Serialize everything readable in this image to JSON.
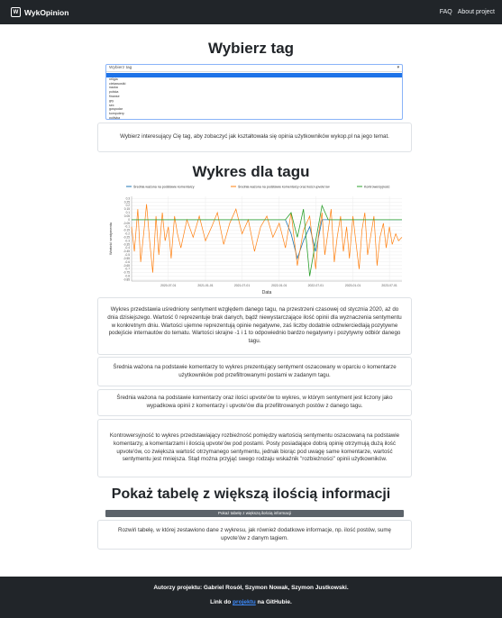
{
  "navbar": {
    "brand": "WykOpinion",
    "links": [
      "FAQ",
      "About project"
    ]
  },
  "tag_section": {
    "title": "Wybierz tag",
    "select_placeholder": "Wybierz tag",
    "options": [
      "",
      "religia",
      "ciekawostki",
      "nauka",
      "polska",
      "finanse",
      "gry",
      "sex",
      "gospodar",
      "komputery",
      "polityka"
    ],
    "selected_index": 0,
    "description": "Wybierz interesujący Cię tag, aby zobaczyć jak kształtowała się opinia użytkowników wykop.pl na jego temat."
  },
  "chart_section": {
    "title": "Wykres dla tagu",
    "description": "Wykres przedstawia uśredniony sentyment względem danego tagu, na przestrzeni czasowej od stycznia 2020, aż do dnia dzisiejszego. Wartość 0 reprezentuje brak danych, bądź niewystarczające ilość opinii dla wyznaczenia sentymentu w konkretnym dniu. Wartości ujemne reprezentują opinie negatywne, zaś liczby dodatnie odzwierciedlają pozytywne podejście internautów do tematu. Wartości skrajne -1 i 1 to odpowiednio bardzo negatywny i pozytywny odbiór danego tagu.",
    "explanations": [
      "Średnia ważona na podstawie komentarzy to wykres prezentujący sentyment oszacowany w oparciu o komentarze użytkowników pod przefiltrowanymi postami w zadanym tagu.",
      "Średnia ważona na podstawie komentarzy oraz ilości upvote'ów to wykres, w którym sentyment jest liczony jako wypadkowa opinii z komentarzy i upvote'ów dla przefiltrowanych postów z danego tagu.",
      "Kontrowersyjność to wykres przedstawiający rozbieżność pomiędzy wartością sentymentu oszacowaną na podstawie komentarzy, a komentarzami i ilością upvote'ów pod postami. Posty posiadające dobrą opinię otrzymują dużą ilość upvote'ów, co zwiększa wartość otrzymanego sentymentu, jednak biorąc pod uwagę same komentarze, wartość sentymentu jest mniejsza. Stąd można przyjąć swego rodzaju wskaźnik \"rozbieżności\" opinii użytkowników."
    ]
  },
  "table_section": {
    "title": "Pokaż tabelę z większą ilością informacji",
    "button_label": "Pokaż tabelę z większą ilością informacji",
    "description": "Rozwiń tabelę, w której zestawiono dane z wykresu, jak również dodatkowe informacje, np. ilość postów, sumę upvote'ów z danym tagiem."
  },
  "footer": {
    "authors": "Autorzy projektu: Gabriel Rosół, Szymon Nowak, Szymon Justkowski.",
    "link_prefix": "Link do",
    "link_text": "projektu",
    "link_suffix": "na GitHubie."
  },
  "colors": {
    "navbar_bg": "#212529",
    "series_comments": "#1f77b4",
    "series_upvotes": "#ff7f0e",
    "series_controversy": "#2ca02c",
    "link": "#3d8bfd"
  },
  "chart_data": {
    "type": "line",
    "title": "",
    "xlabel": "Data",
    "ylabel": "Wartość sentymentu",
    "x_ticks": [
      "2020-07-01",
      "2021-01-01",
      "2021-07-01",
      "2022-01-01",
      "2022-07-01",
      "2023-01-01",
      "2023-07-01"
    ],
    "y_ticks": [
      0.3,
      0.25,
      0.2,
      0.15,
      0.1,
      0.05,
      0,
      -0.05,
      -0.1,
      -0.15,
      -0.2,
      -0.25,
      -0.3,
      -0.35,
      -0.4,
      -0.45,
      -0.5,
      -0.55,
      -0.6,
      -0.65,
      -0.7,
      -0.75,
      -0.8,
      -0.85
    ],
    "ylim": [
      -0.87,
      0.33
    ],
    "x_range": [
      "2020-01-01",
      "2023-09-01"
    ],
    "legend": "top",
    "grid": true,
    "series": [
      {
        "name": "Średnia ważona na podstawie komentarzy",
        "color": "#1f77b4",
        "points": [
          [
            "2020-01-01",
            0
          ],
          [
            "2020-06-01",
            0
          ],
          [
            "2020-12-01",
            0
          ],
          [
            "2021-06-01",
            0
          ],
          [
            "2021-12-01",
            0
          ],
          [
            "2022-02-01",
            0
          ],
          [
            "2022-03-01",
            -0.2
          ],
          [
            "2022-04-01",
            -0.55
          ],
          [
            "2022-05-01",
            -0.3
          ],
          [
            "2022-06-01",
            -0.1
          ],
          [
            "2022-07-01",
            -0.45
          ],
          [
            "2022-08-01",
            0
          ],
          [
            "2022-12-01",
            0
          ],
          [
            "2023-06-01",
            0
          ],
          [
            "2023-09-01",
            0
          ]
        ]
      },
      {
        "name": "Średnia ważona na podstawie komentarzy oraz ilości upvote'ów",
        "color": "#ff7f0e",
        "points": [
          [
            "2020-01-01",
            -0.1
          ],
          [
            "2020-01-15",
            -0.45
          ],
          [
            "2020-02-01",
            0.15
          ],
          [
            "2020-02-15",
            -0.6
          ],
          [
            "2020-03-01",
            -0.2
          ],
          [
            "2020-03-15",
            0.22
          ],
          [
            "2020-04-01",
            -0.35
          ],
          [
            "2020-04-15",
            -0.75
          ],
          [
            "2020-05-01",
            0.05
          ],
          [
            "2020-05-15",
            -0.5
          ],
          [
            "2020-06-01",
            0.1
          ],
          [
            "2020-06-15",
            -0.3
          ],
          [
            "2020-07-01",
            -0.1
          ],
          [
            "2020-07-15",
            -0.55
          ],
          [
            "2020-08-01",
            0.05
          ],
          [
            "2020-08-15",
            -0.2
          ],
          [
            "2020-09-01",
            -0.4
          ],
          [
            "2020-10-01",
            0
          ],
          [
            "2020-11-01",
            -0.25
          ],
          [
            "2020-12-01",
            0.05
          ],
          [
            "2021-01-01",
            -0.3
          ],
          [
            "2021-02-01",
            -0.1
          ],
          [
            "2021-03-01",
            0.1
          ],
          [
            "2021-04-01",
            -0.35
          ],
          [
            "2021-05-01",
            -0.05
          ],
          [
            "2021-06-01",
            0.15
          ],
          [
            "2021-07-01",
            -0.2
          ],
          [
            "2021-08-01",
            0
          ],
          [
            "2021-09-01",
            -0.45
          ],
          [
            "2021-10-01",
            -0.1
          ],
          [
            "2021-11-01",
            0.05
          ],
          [
            "2021-12-01",
            -0.25
          ],
          [
            "2022-01-01",
            -0.05
          ],
          [
            "2022-02-01",
            -0.4
          ],
          [
            "2022-03-01",
            0.1
          ],
          [
            "2022-04-01",
            -0.65
          ],
          [
            "2022-05-01",
            -0.15
          ],
          [
            "2022-06-01",
            0.05
          ],
          [
            "2022-07-01",
            -0.7
          ],
          [
            "2022-07-15",
            -0.2
          ],
          [
            "2022-08-01",
            0.1
          ],
          [
            "2022-08-15",
            -0.5
          ],
          [
            "2022-09-01",
            -0.15
          ],
          [
            "2022-09-15",
            0.15
          ],
          [
            "2022-10-01",
            -0.6
          ],
          [
            "2022-10-15",
            -0.25
          ],
          [
            "2022-11-01",
            0.05
          ],
          [
            "2022-11-15",
            -0.45
          ],
          [
            "2022-12-01",
            -0.1
          ],
          [
            "2022-12-15",
            -0.55
          ],
          [
            "2023-01-01",
            0.05
          ],
          [
            "2023-01-15",
            -0.3
          ],
          [
            "2023-02-01",
            -0.7
          ],
          [
            "2023-02-15",
            -0.15
          ],
          [
            "2023-03-01",
            0.1
          ],
          [
            "2023-03-15",
            -0.5
          ],
          [
            "2023-04-01",
            -0.2
          ],
          [
            "2023-04-15",
            0.05
          ],
          [
            "2023-05-01",
            -0.65
          ],
          [
            "2023-05-15",
            -0.25
          ],
          [
            "2023-06-01",
            -0.05
          ],
          [
            "2023-06-15",
            -0.4
          ],
          [
            "2023-07-01",
            -0.1
          ],
          [
            "2023-07-15",
            -0.35
          ],
          [
            "2023-08-01",
            -0.2
          ],
          [
            "2023-08-15",
            -0.3
          ],
          [
            "2023-09-01",
            -0.25
          ]
        ]
      },
      {
        "name": "Kontrowersyjność",
        "color": "#2ca02c",
        "points": [
          [
            "2020-01-01",
            0
          ],
          [
            "2020-06-01",
            0
          ],
          [
            "2020-12-01",
            0
          ],
          [
            "2021-06-01",
            0
          ],
          [
            "2021-12-01",
            0
          ],
          [
            "2022-02-01",
            0
          ],
          [
            "2022-03-01",
            0.1
          ],
          [
            "2022-04-01",
            -0.25
          ],
          [
            "2022-05-01",
            0.15
          ],
          [
            "2022-06-01",
            -0.8
          ],
          [
            "2022-07-01",
            -0.3
          ],
          [
            "2022-08-01",
            0.2
          ],
          [
            "2022-09-01",
            0
          ],
          [
            "2023-01-01",
            0
          ],
          [
            "2023-06-01",
            0
          ],
          [
            "2023-09-01",
            0
          ]
        ]
      }
    ]
  }
}
